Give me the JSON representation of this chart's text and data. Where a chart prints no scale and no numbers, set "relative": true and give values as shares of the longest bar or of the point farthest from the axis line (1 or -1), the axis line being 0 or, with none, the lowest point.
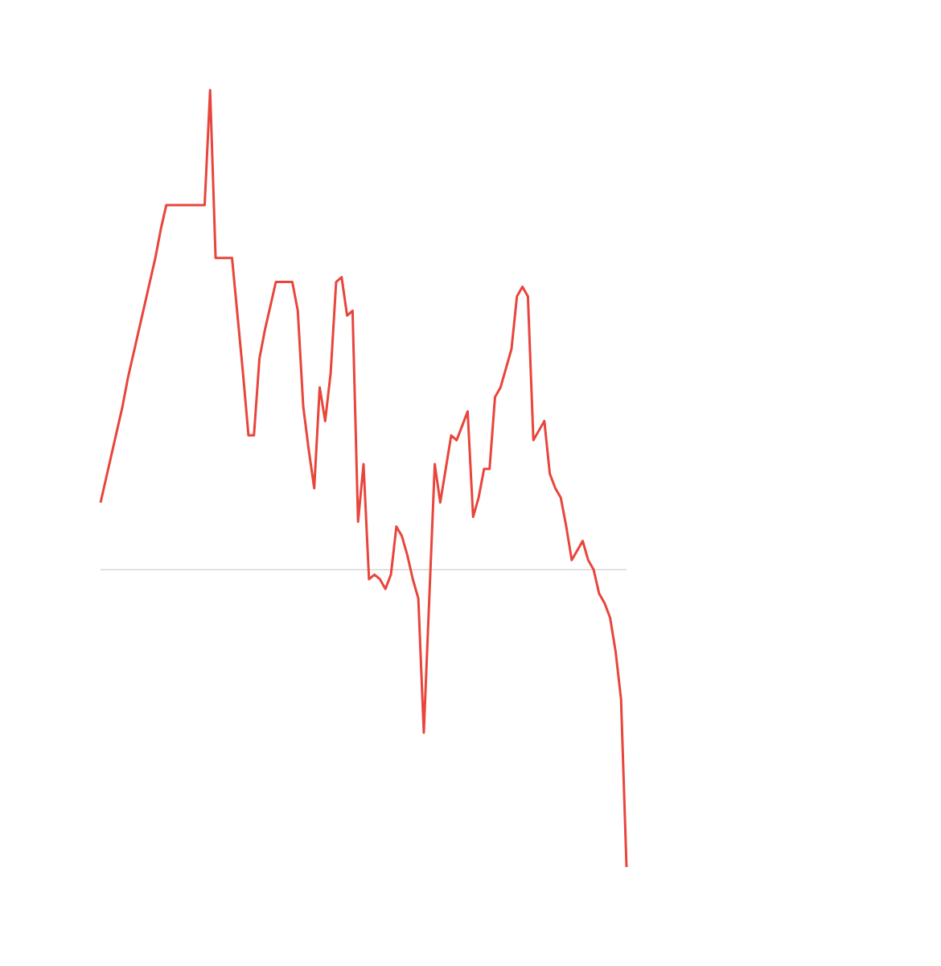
{
  "chart_data": {
    "type": "line",
    "relative": true,
    "categories": [
      null,
      null,
      null,
      null,
      null,
      null,
      null,
      null,
      null,
      null,
      null,
      null,
      null,
      null,
      null,
      null,
      null,
      null,
      null,
      null,
      null,
      null,
      null,
      null,
      null,
      null,
      null,
      null,
      null,
      null,
      null,
      null,
      null,
      null,
      null,
      null,
      null,
      null,
      null,
      null,
      null,
      null,
      null,
      null,
      null,
      null,
      null,
      null,
      null,
      null,
      null,
      null,
      null,
      null,
      null,
      null,
      null,
      null,
      null,
      null,
      null,
      null,
      null,
      null,
      null,
      null,
      null,
      null,
      null,
      null,
      null,
      null,
      null,
      null,
      null,
      null,
      null,
      null,
      null,
      null,
      null,
      null,
      null,
      null,
      null,
      null,
      null,
      null,
      null,
      null,
      null,
      null,
      null,
      null,
      null,
      null,
      null
    ],
    "series": [
      {
        "color": "#e8453c",
        "values": [
          0.14,
          0.19,
          0.24,
          0.29,
          0.34,
          0.4,
          0.45,
          0.5,
          0.55,
          0.6,
          0.65,
          0.71,
          0.76,
          0.76,
          0.76,
          0.76,
          0.76,
          0.76,
          0.76,
          0.76,
          1,
          0.65,
          0.65,
          0.65,
          0.65,
          0.53,
          0.41,
          0.28,
          0.28,
          0.44,
          0.5,
          0.55,
          0.6,
          0.6,
          0.6,
          0.6,
          0.54,
          0.34,
          0.25,
          0.17,
          0.38,
          0.31,
          0.41,
          0.6,
          0.61,
          0.53,
          0.54,
          0.1,
          0.22,
          -0.02,
          -0.01,
          -0.02,
          -0.04,
          -0.01,
          0.09,
          0.07,
          0.03,
          -0.02,
          -0.06,
          -0.34,
          -0.06,
          0.22,
          0.14,
          0.21,
          0.28,
          0.27,
          0.3,
          0.33,
          0.11,
          0.15,
          0.21,
          0.21,
          0.36,
          0.38,
          0.42,
          0.46,
          0.57,
          0.59,
          0.57,
          0.27,
          0.29,
          0.31,
          0.2,
          0.17,
          0.15,
          0.09,
          0.02,
          0.04,
          0.06,
          0.02,
          0,
          -0.05,
          -0.07,
          -0.1,
          -0.17,
          -0.27,
          -0.62
        ]
      }
    ],
    "marker": "none",
    "line_style": "solid"
  }
}
